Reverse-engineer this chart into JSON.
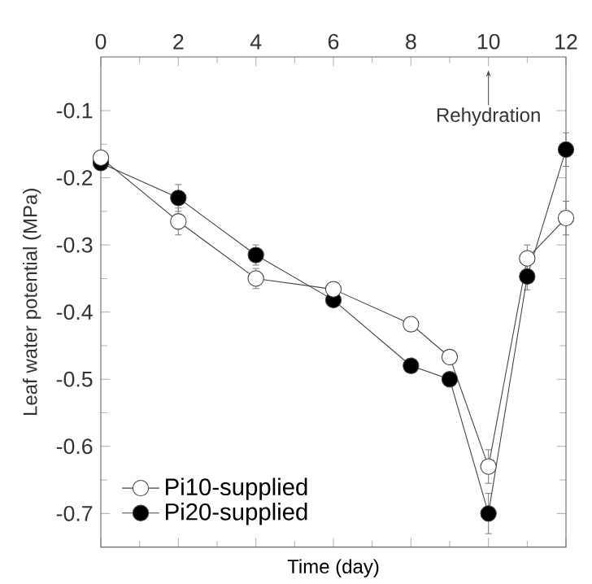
{
  "chart_data": {
    "type": "line",
    "xlabel": "Time (day)",
    "ylabel": "Leaf water potential (MPa)",
    "x": [
      0,
      2,
      4,
      6,
      8,
      9,
      10,
      11,
      12
    ],
    "series": [
      {
        "name": "Pi10-supplied",
        "color": "#ffffff",
        "values": [
          -0.17,
          -0.265,
          -0.35,
          -0.366,
          -0.418,
          -0.467,
          -0.63,
          -0.32,
          -0.26
        ],
        "errors": [
          0.01,
          0.02,
          0.015,
          0.01,
          0.01,
          0.01,
          0.025,
          0.02,
          0.025
        ]
      },
      {
        "name": "Pi20-supplied",
        "color": "#000000",
        "values": [
          -0.178,
          -0.23,
          -0.315,
          -0.382,
          -0.48,
          -0.5,
          -0.7,
          -0.347,
          -0.158
        ],
        "errors": [
          0.01,
          0.02,
          0.015,
          0.01,
          0.01,
          0.01,
          0.03,
          0.02,
          0.025
        ]
      }
    ],
    "xlim": [
      0,
      12
    ],
    "ylim": [
      -0.75,
      -0.02
    ],
    "xticks": [
      0,
      2,
      4,
      6,
      8,
      10,
      12
    ],
    "yticks": [
      -0.7,
      -0.6,
      -0.5,
      -0.4,
      -0.3,
      -0.2,
      -0.1
    ],
    "annotations": [
      {
        "text": "Rehydration",
        "x": 10,
        "y": -0.04
      }
    ],
    "marker": "circle",
    "line_style": "solid",
    "legend": "bottom left",
    "grid": false
  }
}
